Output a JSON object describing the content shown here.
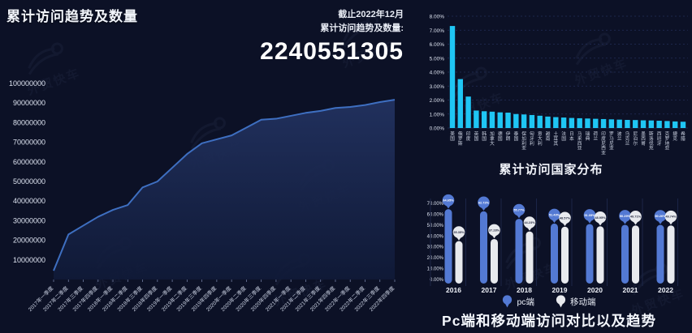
{
  "page": {
    "bg_color": "#0c1126",
    "watermark_text": "外贸快车"
  },
  "left_panel": {
    "title": "累计访问趋势及数量",
    "asof_line1": "截止2022年12月",
    "asof_line2": "累计访问趋势及数量:",
    "total_visits": "2240551305"
  },
  "chart_data": [
    {
      "id": "cumulative-trend",
      "type": "area",
      "title": "累计访问趋势及数量",
      "x": [
        "2017年一季度",
        "2017年二季度",
        "2017年三季度",
        "2017年四季度",
        "2018年一季度",
        "2018年二季度",
        "2018年三季度",
        "2018年四季度",
        "2019年一季度",
        "2019年二季度",
        "2019年三季度",
        "2019年四季度",
        "2020年一季度",
        "2020年二季度",
        "2020年三季度",
        "2020年四季度",
        "2021年一季度",
        "2021年二季度",
        "2021年三季度",
        "2021年四季度",
        "2022年一季度",
        "2022年二季度",
        "2022年三季度",
        "2022年四季度"
      ],
      "values": [
        4500000,
        23000000,
        27500000,
        32000000,
        35500000,
        38000000,
        47000000,
        50000000,
        57000000,
        64000000,
        69500000,
        71500000,
        73500000,
        77500000,
        81500000,
        82000000,
        83500000,
        85000000,
        86000000,
        87500000,
        88000000,
        89000000,
        90500000,
        91700000
      ],
      "ylim": [
        0,
        100000000
      ],
      "ytick_step": 10000000,
      "line_color": "#3e6fc1",
      "fill_top": "#223260",
      "fill_bottom": "#101a38",
      "grid": "off",
      "legend_position": "none"
    },
    {
      "id": "country-distribution",
      "type": "bar",
      "title": "累计访问国家分布",
      "categories": [
        "美国",
        "俄罗斯",
        "印度",
        "英国",
        "韩国",
        "加拿大",
        "德国",
        "伊朗",
        "泰国",
        "保加利亚",
        "匈牙利",
        "意大利",
        "越南",
        "土耳其",
        "法国",
        "日本",
        "马来西亚",
        "瑞典",
        "荷兰",
        "印度尼西亚",
        "罗马尼亚",
        "波兰",
        "乌克兰",
        "尼泊尔",
        "墨西哥",
        "斯洛伐克",
        "西班牙",
        "克罗地亚",
        "捷克",
        "希腊"
      ],
      "values": [
        7.3,
        3.5,
        2.25,
        1.25,
        1.2,
        1.17,
        1.12,
        1.1,
        1.0,
        0.97,
        0.93,
        0.88,
        0.82,
        0.78,
        0.75,
        0.72,
        0.7,
        0.68,
        0.66,
        0.64,
        0.62,
        0.6,
        0.58,
        0.57,
        0.55,
        0.54,
        0.52,
        0.5,
        0.47,
        0.45
      ],
      "unit": "%",
      "ylim": [
        0,
        8
      ],
      "ytick_step": 1,
      "bar_color": "#1fc6f4",
      "grid": "dashed"
    },
    {
      "id": "device-comparison",
      "type": "bar",
      "title": "Pc端和移动端访问对比以及趋势",
      "categories": [
        "2016",
        "2017",
        "2018",
        "2019",
        "2020",
        "2021",
        "2022"
      ],
      "series": [
        {
          "name": "pc端",
          "color": "#5379d3",
          "label_text_color": "#ffffff",
          "values": [
            64.65,
            62.72,
            55.77,
            51.43,
            51.05,
            50.29,
            50.26
          ]
        },
        {
          "name": "移动端",
          "color": "#e8eaee",
          "label_text_color": "#2a2f45",
          "values": [
            35.35,
            37.28,
            44.23,
            48.57,
            48.95,
            49.71,
            49.74
          ]
        }
      ],
      "unit": "%",
      "ylim": [
        0,
        70
      ],
      "ytick_step": 10,
      "grid": "off",
      "legend_position": "bottom"
    }
  ]
}
